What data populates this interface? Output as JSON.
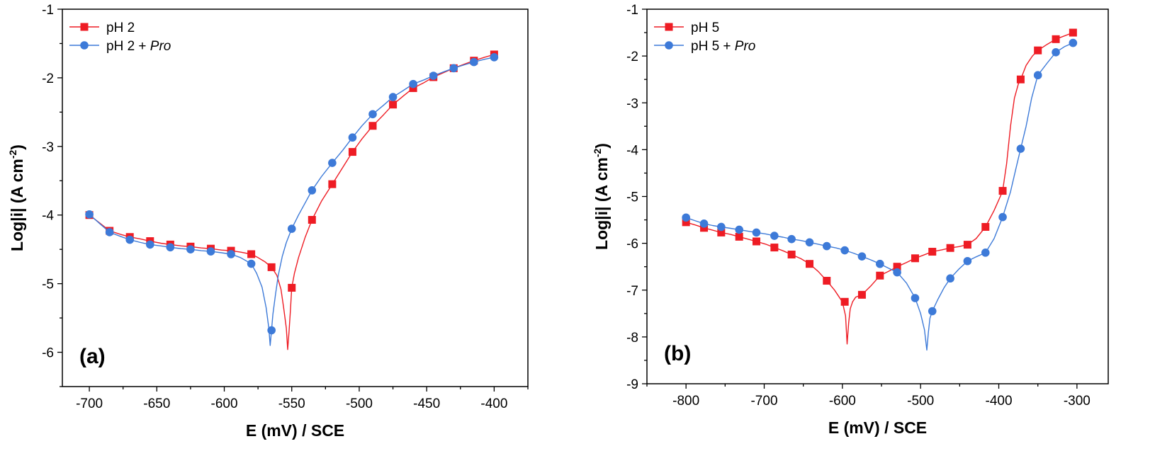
{
  "colors": {
    "red_series": "#ee1c24",
    "blue_series": "#3d7ad8",
    "axis": "#000000"
  },
  "chart_data": [
    {
      "type": "line",
      "panel_label": "(a)",
      "xlabel": "E (mV) / SCE",
      "ylabel_main": "Log|i| (A cm",
      "ylabel_sup": "-2",
      "ylabel_tail": ")",
      "xlim": [
        -720,
        -375
      ],
      "ylim": [
        -6.5,
        -1
      ],
      "xticks": [
        -700,
        -650,
        -600,
        -550,
        -500,
        -450,
        -400
      ],
      "xtick_labels": [
        "-700",
        "-650",
        "-600",
        "-550",
        "-500",
        "-450",
        "-400"
      ],
      "yticks": [
        -6,
        -5,
        -4,
        -3,
        -2,
        -1
      ],
      "ytick_labels": [
        "-6",
        "-5",
        "-4",
        "-3",
        "-2",
        "-1"
      ],
      "legend_position": "top-left",
      "grid": false,
      "series": [
        {
          "name": "pH 2",
          "name_suffix": "",
          "marker": "square",
          "color": "#ee1c24",
          "x": [
            -700,
            -685,
            -670,
            -655,
            -640,
            -625,
            -610,
            -595,
            -580,
            -565,
            -550,
            -535,
            -520,
            -505,
            -490,
            -475,
            -460,
            -445,
            -430,
            -415,
            -400
          ],
          "y": [
            -4.0,
            -4.23,
            -4.32,
            -4.38,
            -4.43,
            -4.46,
            -4.49,
            -4.52,
            -4.57,
            -4.76,
            -5.06,
            -4.07,
            -3.55,
            -3.08,
            -2.7,
            -2.39,
            -2.15,
            -1.99,
            -1.86,
            -1.75,
            -1.66
          ],
          "line_x": [
            -700,
            -692,
            -685,
            -677,
            -670,
            -662,
            -655,
            -647,
            -640,
            -632,
            -625,
            -617,
            -610,
            -602,
            -595,
            -588,
            -580,
            -575,
            -570,
            -565,
            -561,
            -558,
            -556,
            -554,
            -553,
            -552,
            -551,
            -550,
            -548,
            -545,
            -540,
            -535,
            -528,
            -520,
            -512,
            -505,
            -498,
            -490,
            -482,
            -475,
            -467,
            -460,
            -452,
            -445,
            -437,
            -430,
            -422,
            -415,
            -407,
            -400
          ],
          "line_y": [
            -4.0,
            -4.12,
            -4.23,
            -4.28,
            -4.32,
            -4.35,
            -4.38,
            -4.41,
            -4.43,
            -4.45,
            -4.46,
            -4.48,
            -4.49,
            -4.51,
            -4.52,
            -4.54,
            -4.57,
            -4.62,
            -4.68,
            -4.76,
            -4.88,
            -5.08,
            -5.35,
            -5.65,
            -5.96,
            -5.7,
            -5.4,
            -5.06,
            -4.85,
            -4.62,
            -4.32,
            -4.07,
            -3.8,
            -3.55,
            -3.3,
            -3.08,
            -2.89,
            -2.7,
            -2.54,
            -2.39,
            -2.26,
            -2.15,
            -2.07,
            -1.99,
            -1.92,
            -1.86,
            -1.8,
            -1.75,
            -1.7,
            -1.66
          ]
        },
        {
          "name": "pH 2 + ",
          "name_suffix": "Pro",
          "marker": "circle",
          "color": "#3d7ad8",
          "x": [
            -700,
            -685,
            -670,
            -655,
            -640,
            -625,
            -610,
            -595,
            -580,
            -565,
            -550,
            -535,
            -520,
            -505,
            -490,
            -475,
            -460,
            -445,
            -430,
            -415,
            -400
          ],
          "y": [
            -3.99,
            -4.25,
            -4.36,
            -4.43,
            -4.47,
            -4.5,
            -4.53,
            -4.57,
            -4.71,
            -5.68,
            -4.2,
            -3.64,
            -3.24,
            -2.87,
            -2.53,
            -2.28,
            -2.09,
            -1.97,
            -1.86,
            -1.77,
            -1.7
          ],
          "line_x": [
            -700,
            -692,
            -685,
            -677,
            -670,
            -662,
            -655,
            -647,
            -640,
            -632,
            -625,
            -617,
            -610,
            -602,
            -595,
            -588,
            -580,
            -576,
            -572,
            -569,
            -567,
            -566,
            -565,
            -564,
            -562,
            -560,
            -557,
            -554,
            -550,
            -545,
            -540,
            -535,
            -528,
            -520,
            -512,
            -505,
            -498,
            -490,
            -482,
            -475,
            -467,
            -460,
            -452,
            -445,
            -437,
            -430,
            -422,
            -415,
            -407,
            -400
          ],
          "line_y": [
            -3.99,
            -4.13,
            -4.25,
            -4.31,
            -4.36,
            -4.4,
            -4.43,
            -4.45,
            -4.47,
            -4.49,
            -4.5,
            -4.52,
            -4.53,
            -4.55,
            -4.57,
            -4.62,
            -4.71,
            -4.85,
            -5.05,
            -5.35,
            -5.65,
            -5.9,
            -5.68,
            -5.45,
            -5.15,
            -4.88,
            -4.6,
            -4.4,
            -4.2,
            -4.0,
            -3.82,
            -3.64,
            -3.44,
            -3.24,
            -3.05,
            -2.87,
            -2.7,
            -2.53,
            -2.4,
            -2.28,
            -2.18,
            -2.09,
            -2.03,
            -1.97,
            -1.91,
            -1.86,
            -1.81,
            -1.77,
            -1.73,
            -1.7
          ]
        }
      ]
    },
    {
      "type": "line",
      "panel_label": "(b)",
      "xlabel": "E (mV) / SCE",
      "ylabel_main": "Log|i| (A cm",
      "ylabel_sup": "-2",
      "ylabel_tail": ")",
      "xlim": [
        -850,
        -260
      ],
      "ylim": [
        -9,
        -1
      ],
      "xticks": [
        -800,
        -700,
        -600,
        -500,
        -400,
        -300
      ],
      "xtick_labels": [
        "-800",
        "-700",
        "-600",
        "-500",
        "-400",
        "-300"
      ],
      "yticks": [
        -9,
        -8,
        -7,
        -6,
        -5,
        -4,
        -3,
        -2,
        -1
      ],
      "ytick_labels": [
        "-9",
        "-8",
        "-7",
        "-6",
        "-5",
        "-4",
        "-3",
        "-2",
        "-1"
      ],
      "legend_position": "top-left",
      "grid": false,
      "series": [
        {
          "name": "pH 5",
          "name_suffix": "",
          "marker": "square",
          "color": "#ee1c24",
          "x": [
            -800,
            -777,
            -755,
            -732,
            -710,
            -687,
            -665,
            -642,
            -620,
            -597,
            -575,
            -552,
            -530,
            -507,
            -485,
            -462,
            -440,
            -417,
            -395,
            -372,
            -350,
            -327,
            -305
          ],
          "y": [
            -5.55,
            -5.67,
            -5.77,
            -5.86,
            -5.96,
            -6.09,
            -6.24,
            -6.44,
            -6.8,
            -7.25,
            -7.1,
            -6.69,
            -6.5,
            -6.32,
            -6.18,
            -6.1,
            -6.03,
            -5.65,
            -4.88,
            -2.5,
            -1.88,
            -1.64,
            -1.5
          ],
          "line_x": [
            -800,
            -788,
            -777,
            -766,
            -755,
            -743,
            -732,
            -721,
            -710,
            -698,
            -687,
            -676,
            -665,
            -653,
            -642,
            -631,
            -620,
            -610,
            -600,
            -596,
            -594,
            -592,
            -590,
            -587,
            -583,
            -575,
            -563,
            -552,
            -541,
            -530,
            -518,
            -507,
            -496,
            -485,
            -473,
            -462,
            -451,
            -440,
            -429,
            -417,
            -406,
            -398,
            -395,
            -390,
            -385,
            -380,
            -375,
            -372,
            -365,
            -357,
            -350,
            -338,
            -327,
            -316,
            -305
          ],
          "line_y": [
            -5.55,
            -5.61,
            -5.67,
            -5.72,
            -5.77,
            -5.81,
            -5.86,
            -5.91,
            -5.96,
            -6.02,
            -6.09,
            -6.16,
            -6.24,
            -6.33,
            -6.44,
            -6.6,
            -6.8,
            -7.0,
            -7.25,
            -7.55,
            -8.15,
            -7.7,
            -7.4,
            -7.25,
            -7.15,
            -7.1,
            -6.9,
            -6.69,
            -6.6,
            -6.5,
            -6.41,
            -6.32,
            -6.25,
            -6.18,
            -6.14,
            -6.1,
            -6.07,
            -6.03,
            -5.9,
            -5.65,
            -5.3,
            -5.0,
            -4.88,
            -4.3,
            -3.5,
            -2.9,
            -2.6,
            -2.5,
            -2.2,
            -2.0,
            -1.88,
            -1.75,
            -1.64,
            -1.57,
            -1.5
          ]
        },
        {
          "name": "pH 5 + ",
          "name_suffix": "Pro",
          "marker": "circle",
          "color": "#3d7ad8",
          "x": [
            -800,
            -777,
            -755,
            -732,
            -710,
            -687,
            -665,
            -642,
            -620,
            -597,
            -575,
            -552,
            -530,
            -507,
            -485,
            -462,
            -440,
            -417,
            -395,
            -372,
            -350,
            -327,
            -305
          ],
          "y": [
            -5.45,
            -5.58,
            -5.65,
            -5.71,
            -5.77,
            -5.84,
            -5.91,
            -5.98,
            -6.06,
            -6.15,
            -6.28,
            -6.44,
            -6.62,
            -7.17,
            -7.45,
            -6.75,
            -6.38,
            -6.2,
            -5.44,
            -3.98,
            -2.41,
            -1.92,
            -1.72
          ],
          "line_x": [
            -800,
            -788,
            -777,
            -766,
            -755,
            -743,
            -732,
            -721,
            -710,
            -698,
            -687,
            -676,
            -665,
            -653,
            -642,
            -631,
            -620,
            -608,
            -597,
            -586,
            -575,
            -563,
            -552,
            -541,
            -530,
            -518,
            -507,
            -500,
            -495,
            -492,
            -490,
            -488,
            -485,
            -478,
            -470,
            -462,
            -451,
            -440,
            -429,
            -417,
            -406,
            -395,
            -385,
            -378,
            -372,
            -365,
            -358,
            -350,
            -338,
            -327,
            -316,
            -305
          ],
          "line_y": [
            -5.45,
            -5.52,
            -5.58,
            -5.62,
            -5.65,
            -5.68,
            -5.71,
            -5.74,
            -5.77,
            -5.8,
            -5.84,
            -5.87,
            -5.91,
            -5.94,
            -5.98,
            -6.02,
            -6.06,
            -6.1,
            -6.15,
            -6.21,
            -6.28,
            -6.36,
            -6.44,
            -6.53,
            -6.62,
            -6.85,
            -7.17,
            -7.5,
            -7.85,
            -8.28,
            -7.9,
            -7.6,
            -7.45,
            -7.2,
            -6.95,
            -6.75,
            -6.55,
            -6.38,
            -6.29,
            -6.2,
            -5.9,
            -5.44,
            -4.9,
            -4.4,
            -3.98,
            -3.5,
            -2.9,
            -2.41,
            -2.15,
            -1.92,
            -1.8,
            -1.72
          ]
        }
      ]
    }
  ]
}
